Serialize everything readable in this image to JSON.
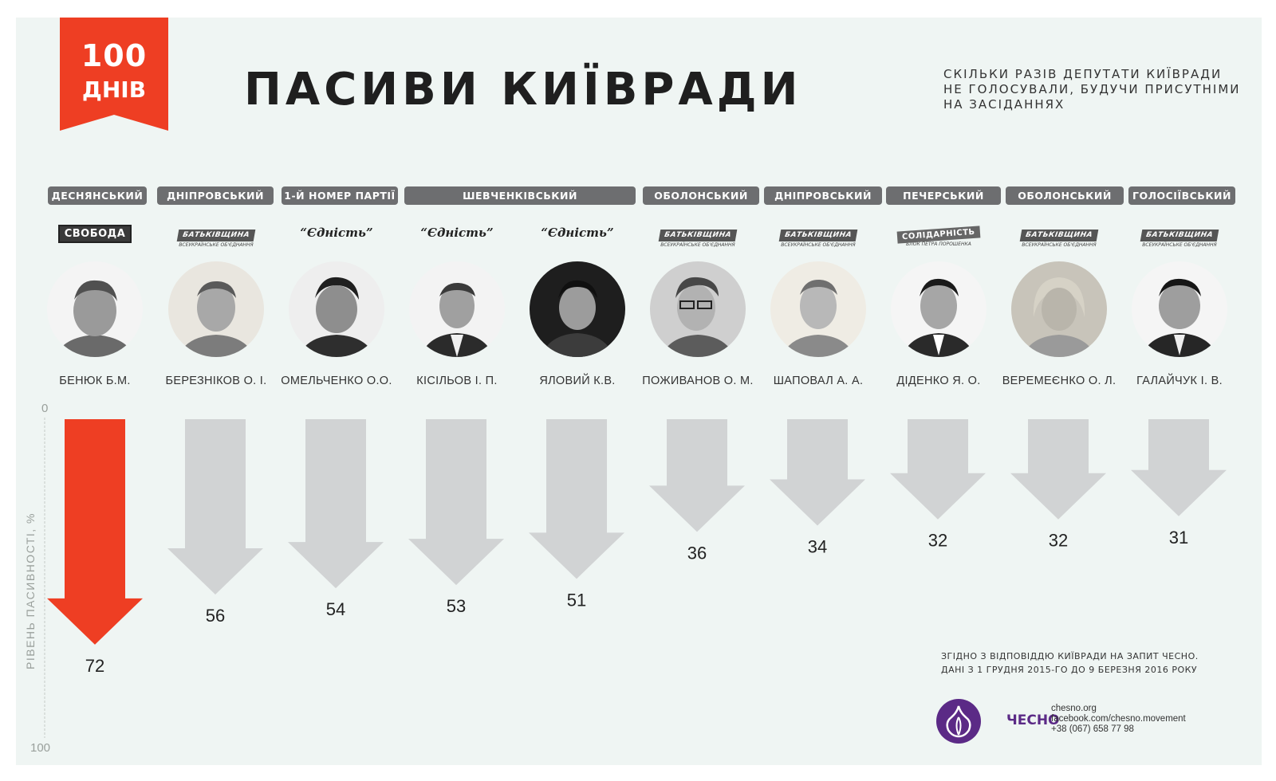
{
  "badge": {
    "number": "100",
    "unit": "ДНІВ"
  },
  "title": "ПАСИВИ КИЇВРАДИ",
  "subtitle": "СКІЛЬКИ РАЗІВ ДЕПУТАТИ КИЇВРАДИ НЕ ГОЛОСУВАЛИ, БУДУЧИ ПРИСУТНІМИ НА ЗАСІДАННЯХ",
  "districts": [
    {
      "label": "ДЕСНЯНСЬКИЙ"
    },
    {
      "label": "ДНІПРОВСЬКИЙ"
    },
    {
      "label": "1-Й НОМЕР ПАРТІЇ"
    },
    {
      "label": "ШЕВЧЕНКІВСЬКИЙ"
    },
    {
      "label": "ОБОЛОНСЬКИЙ"
    },
    {
      "label": "ДНІПРОВСЬКИЙ"
    },
    {
      "label": "ПЕЧЕРСЬКИЙ"
    },
    {
      "label": "ОБОЛОНСЬКИЙ"
    },
    {
      "label": "ГОЛОСІЇВСЬКИЙ"
    }
  ],
  "parties": [
    {
      "style": "svoboda",
      "text": "СВОБОДА",
      "sub": ""
    },
    {
      "style": "batk",
      "text": "БАТЬКІВЩИНА",
      "sub": "ВСЕУКРАЇНСЬКЕ ОБ'ЄДНАННЯ"
    },
    {
      "style": "text",
      "text": "“Єдність”",
      "sub": ""
    },
    {
      "style": "text",
      "text": "“Єдність”",
      "sub": ""
    },
    {
      "style": "text",
      "text": "“Єдність”",
      "sub": ""
    },
    {
      "style": "batk",
      "text": "БАТЬКІВЩИНА",
      "sub": "ВСЕУКРАЇНСЬКЕ ОБ'ЄДНАННЯ"
    },
    {
      "style": "batk",
      "text": "БАТЬКІВЩИНА",
      "sub": "ВСЕУКРАЇНСЬКЕ ОБ'ЄДНАННЯ"
    },
    {
      "style": "sol",
      "text": "СОЛІДАРНІСТЬ",
      "sub": "БЛОК ПЕТРА ПОРОШЕНКА"
    },
    {
      "style": "batk",
      "text": "БАТЬКІВЩИНА",
      "sub": "ВСЕУКРАЇНСЬКЕ ОБ'ЄДНАННЯ"
    },
    {
      "style": "batk",
      "text": "БАТЬКІВЩИНА",
      "sub": "ВСЕУКРАЇНСЬКЕ ОБ'ЄДНАННЯ"
    }
  ],
  "chart_data": {
    "type": "bar",
    "orientation": "downward-arrows",
    "title": "ПАСИВИ КИЇВРАДИ",
    "ylabel": "РІВЕНЬ ПАСИВНОСТІ, %",
    "ylim": [
      0,
      100
    ],
    "y_ticks": [
      "0",
      "100"
    ],
    "categories": [
      "БЕНЮК Б.М.",
      "БЕРЕЗНІКОВ О. І.",
      "ОМЕЛЬЧЕНКО О.О.",
      "КІСІЛЬОВ І. П.",
      "ЯЛОВИЙ К.В.",
      "ПОЖИВАНОВ О. М.",
      "ШАПОВАЛ А. А.",
      "ДІДЕНКО Я. О.",
      "ВЕРЕМЕЄНКО О. Л.",
      "ГАЛАЙЧУК І. В."
    ],
    "values": [
      72,
      56,
      54,
      53,
      51,
      36,
      34,
      32,
      32,
      31
    ],
    "highlight_index": 0,
    "colors": {
      "highlight": "#ee3e23",
      "default": "#d1d3d4"
    }
  },
  "colors": {
    "accent": "#ee3e23",
    "panel": "#eff5f3",
    "district_bg": "#6d6e70",
    "brand": "#5b2a86"
  },
  "source": {
    "line1": "ЗГІДНО З ВІДПОВІДДЮ КИЇВРАДИ НА ЗАПИТ ЧЕСНО.",
    "line2": "ДАНІ З 1 ГРУДНЯ 2015-ГО ДО 9 БЕРЕЗНЯ 2016 РОКУ"
  },
  "brand": {
    "name": "ЧЕСНО",
    "site": "chesno.org",
    "facebook": "facebook.com/chesno.movement",
    "phone": "+38 (067) 658 77 98"
  }
}
